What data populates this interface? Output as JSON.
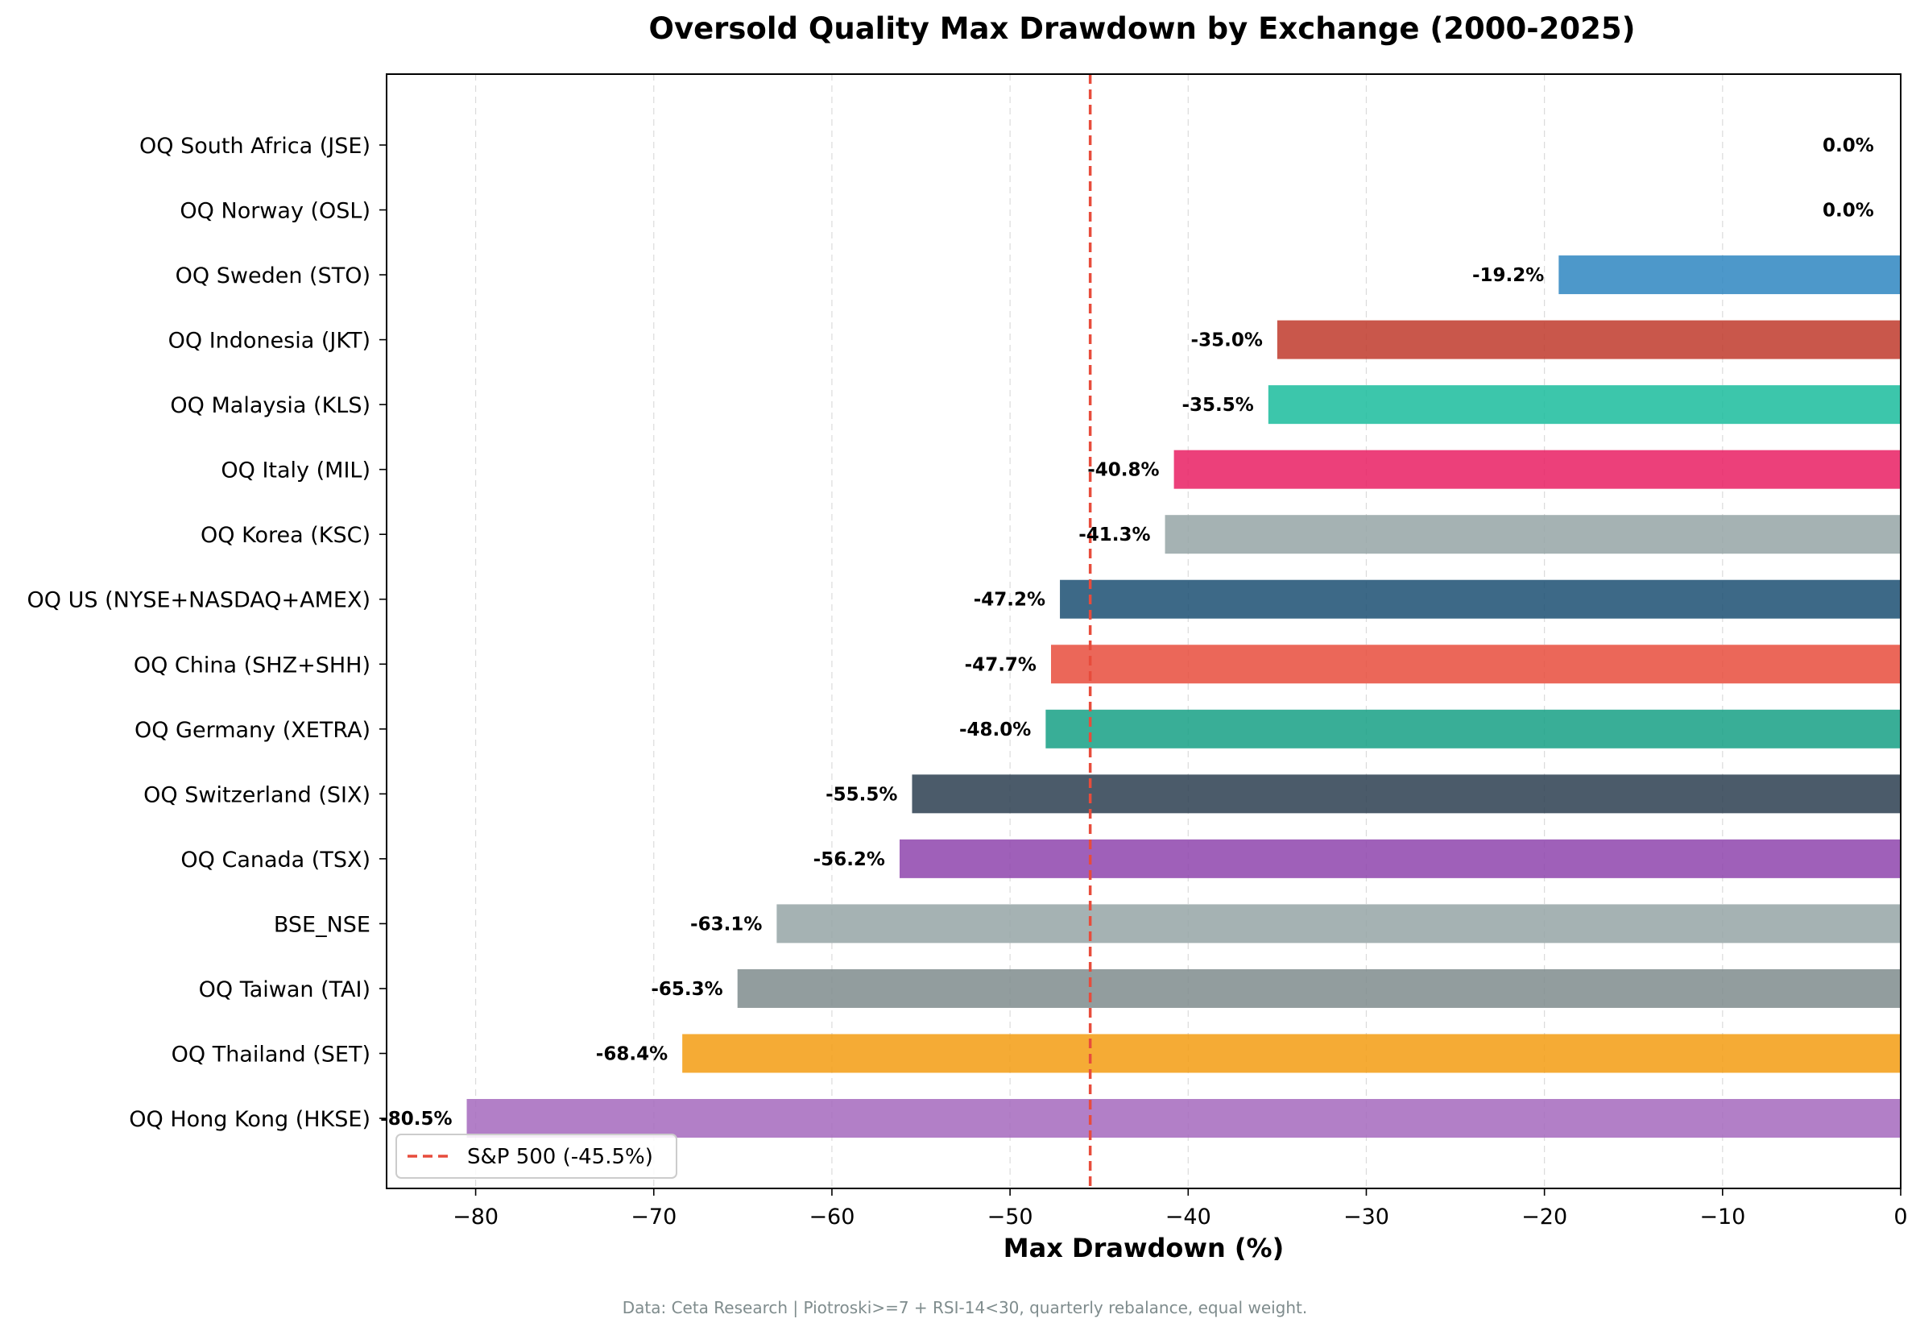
{
  "chart_data": {
    "type": "bar",
    "orientation": "horizontal",
    "title": "Oversold Quality Max Drawdown by Exchange (2000-2025)",
    "xlabel": "Max Drawdown (%)",
    "ylabel": "",
    "xlim": [
      -85,
      0
    ],
    "xticks": [
      -80,
      -70,
      -60,
      -50,
      -40,
      -30,
      -20,
      -10,
      0
    ],
    "grid": "x, dashed",
    "categories": [
      "OQ South Africa (JSE)",
      "OQ Norway (OSL)",
      "OQ Sweden (STO)",
      "OQ Indonesia (JKT)",
      "OQ Malaysia (KLS)",
      "OQ Italy (MIL)",
      "OQ Korea (KSC)",
      "OQ US (NYSE+NASDAQ+AMEX)",
      "OQ China (SHZ+SHH)",
      "OQ Germany (XETRA)",
      "OQ Switzerland (SIX)",
      "OQ Canada (TSX)",
      "BSE_NSE",
      "OQ Taiwan (TAI)",
      "OQ Thailand (SET)",
      "OQ Hong Kong (HKSE)"
    ],
    "values": [
      0.0,
      0.0,
      -19.2,
      -35.0,
      -35.5,
      -40.8,
      -41.3,
      -47.2,
      -47.7,
      -48.0,
      -55.5,
      -56.2,
      -63.1,
      -65.3,
      -68.4,
      -80.5
    ],
    "data_labels": [
      "0.0%",
      "0.0%",
      "-19.2%",
      "-35.0%",
      "-35.5%",
      "-40.8%",
      "-41.3%",
      "-47.2%",
      "-47.7%",
      "-48.0%",
      "-55.5%",
      "-56.2%",
      "-63.1%",
      "-65.3%",
      "-68.4%",
      "-80.5%"
    ],
    "colors": [
      "#2c7bb6",
      "#8e44ad",
      "#2e86c1",
      "#c0392b",
      "#1abc9c",
      "#e91e63",
      "#95a5a6",
      "#1b4f72",
      "#e74c3c",
      "#16a085",
      "#2c3e50",
      "#8e44ad",
      "#95a5a6",
      "#7f8c8d",
      "#f39c12",
      "#a569bd"
    ],
    "reference_line": {
      "value": -45.5,
      "label": "S&P 500 (-45.5%)",
      "color": "#e74c3c",
      "style": "dashed"
    },
    "legend_position": "lower-left",
    "footnote": "Data: Ceta Research | Piotroski>=7 + RSI-14<30, quarterly rebalance, equal weight."
  }
}
